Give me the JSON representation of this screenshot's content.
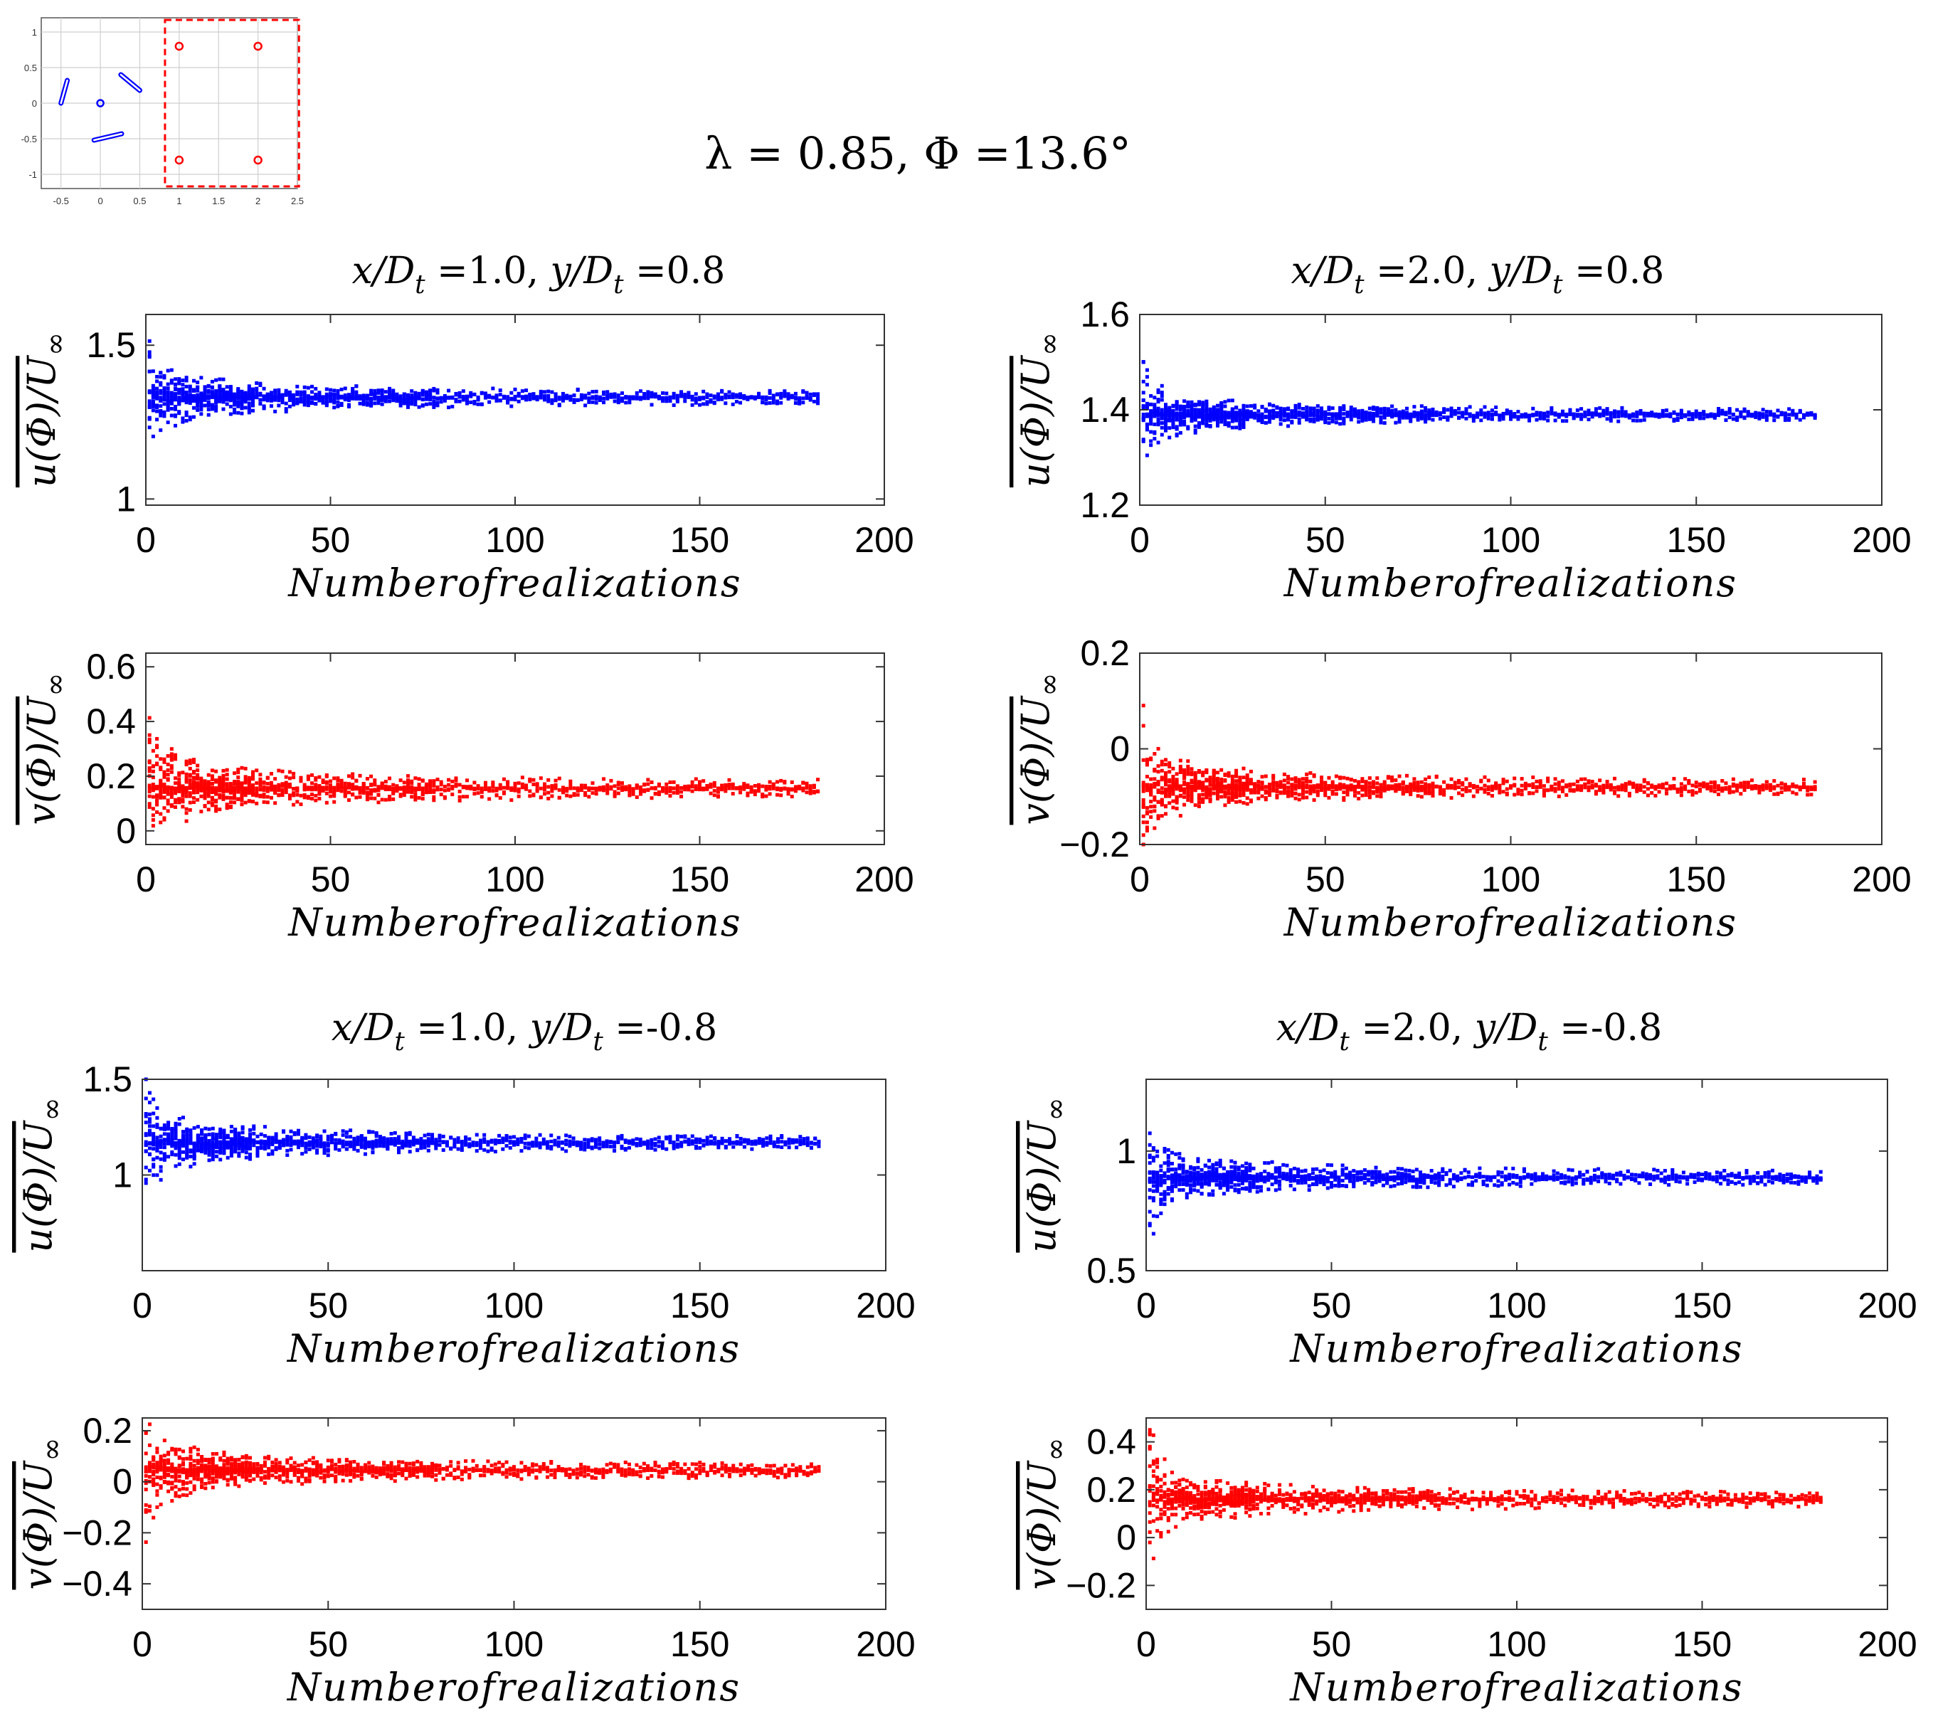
{
  "figure": {
    "title": "λ = 0.85, Φ =13.6°",
    "colors": {
      "u": "#0000ff",
      "v": "#ff0000",
      "axis": "#000000",
      "grid": "#cfcfcf",
      "box": "#ff0000"
    }
  },
  "inset": {
    "xticks": [
      "-0.5",
      "0",
      "0.5",
      "1",
      "1.5",
      "2",
      "2.5"
    ],
    "yticks": [
      "1",
      "0.5",
      "0",
      "-0.5",
      "-1"
    ],
    "xlim": [
      -0.75,
      2.5
    ],
    "ylim": [
      -1.2,
      1.2
    ],
    "blades": [
      {
        "x1": -0.5,
        "y1": 0.0,
        "x2": -0.42,
        "y2": 0.32
      },
      {
        "x1": 0.26,
        "y1": 0.4,
        "x2": 0.5,
        "y2": 0.18
      },
      {
        "x1": -0.08,
        "y1": -0.52,
        "x2": 0.27,
        "y2": -0.43
      }
    ],
    "hub": {
      "x": 0,
      "y": 0
    },
    "probes": [
      {
        "x": 1.0,
        "y": 0.8
      },
      {
        "x": 2.0,
        "y": 0.8
      },
      {
        "x": 1.0,
        "y": -0.8
      },
      {
        "x": 2.0,
        "y": -0.8
      }
    ],
    "box": {
      "x0": 0.82,
      "x1": 2.52,
      "y0": -1.17,
      "y1": 1.17
    }
  },
  "chart_data": [
    {
      "type": "scatter",
      "panel": "x/Dt=1.0, y/Dt=0.8",
      "title_x": "x/D",
      "title_xs": "t",
      "title_xval": "=1.0, ",
      "title_y": "y/D",
      "title_ys": "t",
      "title_yval": "=0.8",
      "series": "u",
      "ylabel_main": "u(Φ)/U",
      "ylabel_sub": "∞",
      "xlabel": "Numberofrealizations",
      "xlim": [
        0,
        200
      ],
      "ylim": [
        0.98,
        1.6
      ],
      "xticks": [
        0,
        50,
        100,
        150,
        200
      ],
      "yticks": [
        1,
        1.5
      ],
      "ytick_labels": [
        "1",
        "1.5"
      ],
      "final": 1.33,
      "spread": 0.3,
      "n": 182
    },
    {
      "type": "scatter",
      "panel": "x/Dt=1.0, y/Dt=0.8",
      "series": "v",
      "ylabel_main": "v(Φ)/U",
      "ylabel_sub": "∞",
      "xlabel": "Numberofrealizations",
      "xlim": [
        0,
        200
      ],
      "ylim": [
        -0.05,
        0.65
      ],
      "xticks": [
        0,
        50,
        100,
        150,
        200
      ],
      "yticks": [
        0,
        0.2,
        0.4,
        0.6
      ],
      "ytick_labels": [
        "0",
        "0.2",
        "0.4",
        "0.6"
      ],
      "final": 0.155,
      "spread": 0.45,
      "n": 182
    },
    {
      "type": "scatter",
      "panel": "x/Dt=2.0, y/Dt=0.8",
      "title_x": "x/D",
      "title_xs": "t",
      "title_xval": "=2.0, ",
      "title_y": "y/D",
      "title_ys": "t",
      "title_yval": "=0.8",
      "series": "u",
      "ylabel_main": "u(Φ)/U",
      "ylabel_sub": "∞",
      "xlabel": "Numberofrealizations",
      "xlim": [
        0,
        200
      ],
      "ylim": [
        1.2,
        1.6
      ],
      "xticks": [
        0,
        50,
        100,
        150,
        200
      ],
      "yticks": [
        1.2,
        1.4,
        1.6
      ],
      "ytick_labels": [
        "1.2",
        "1.4",
        "1.6"
      ],
      "final": 1.39,
      "spread": 0.16,
      "n": 182
    },
    {
      "type": "scatter",
      "panel": "x/Dt=2.0, y/Dt=0.8",
      "series": "v",
      "ylabel_main": "v(Φ)/U",
      "ylabel_sub": "∞",
      "xlabel": "Numberofrealizations",
      "xlim": [
        0,
        200
      ],
      "ylim": [
        -0.2,
        0.2
      ],
      "xticks": [
        0,
        50,
        100,
        150,
        200
      ],
      "yticks": [
        -0.2,
        0,
        0.2
      ],
      "ytick_labels": [
        "−0.2",
        "0",
        "0.2"
      ],
      "final": -0.08,
      "spread": 0.22,
      "n": 182
    },
    {
      "type": "scatter",
      "panel": "x/Dt=1.0, y/Dt=-0.8",
      "title_x": "x/D",
      "title_xs": "t",
      "title_xval": "=1.0, ",
      "title_y": "y/D",
      "title_ys": "t",
      "title_yval": "=-0.8",
      "series": "u",
      "ylabel_main": "u(Φ)/U",
      "ylabel_sub": "∞",
      "xlabel": "Numberofrealizations",
      "xlim": [
        0,
        200
      ],
      "ylim": [
        0.5,
        1.5
      ],
      "xticks": [
        0,
        50,
        100,
        150,
        200
      ],
      "yticks": [
        1,
        1.5
      ],
      "ytick_labels": [
        "1",
        "1.5"
      ],
      "final": 1.17,
      "spread": 0.5,
      "n": 182
    },
    {
      "type": "scatter",
      "panel": "x/Dt=1.0, y/Dt=-0.8",
      "series": "v",
      "ylabel_main": "v(Φ)/U",
      "ylabel_sub": "∞",
      "xlabel": "Numberofrealizations",
      "xlim": [
        0,
        200
      ],
      "ylim": [
        -0.5,
        0.25
      ],
      "xticks": [
        0,
        50,
        100,
        150,
        200
      ],
      "yticks": [
        -0.4,
        -0.2,
        0,
        0.2
      ],
      "ytick_labels": [
        "−0.4",
        "−0.2",
        "0",
        "0.2"
      ],
      "final": 0.045,
      "spread": 0.38,
      "n": 182
    },
    {
      "type": "scatter",
      "panel": "x/Dt=2.0, y/Dt=-0.8",
      "title_x": "x/D",
      "title_xs": "t",
      "title_xval": "=2.0, ",
      "title_y": "y/D",
      "title_ys": "t",
      "title_yval": "=-0.8",
      "series": "u",
      "ylabel_main": "u(Φ)/U",
      "ylabel_sub": "∞",
      "xlabel": "Numberofrealizations",
      "xlim": [
        0,
        200
      ],
      "ylim": [
        0.5,
        1.3
      ],
      "xticks": [
        0,
        50,
        100,
        150,
        200
      ],
      "yticks": [
        0.5,
        1
      ],
      "ytick_labels": [
        "0.5",
        "1"
      ],
      "final": 0.89,
      "spread": 0.4,
      "n": 182
    },
    {
      "type": "scatter",
      "panel": "x/Dt=2.0, y/Dt=-0.8",
      "series": "v",
      "ylabel_main": "v(Φ)/U",
      "ylabel_sub": "∞",
      "xlabel": "Numberofrealizations",
      "xlim": [
        0,
        200
      ],
      "ylim": [
        -0.3,
        0.5
      ],
      "xticks": [
        0,
        50,
        100,
        150,
        200
      ],
      "yticks": [
        -0.2,
        0,
        0.2,
        0.4
      ],
      "ytick_labels": [
        "−0.2",
        "0",
        "0.2",
        "0.4"
      ],
      "final": 0.16,
      "spread": 0.42,
      "n": 182
    }
  ]
}
